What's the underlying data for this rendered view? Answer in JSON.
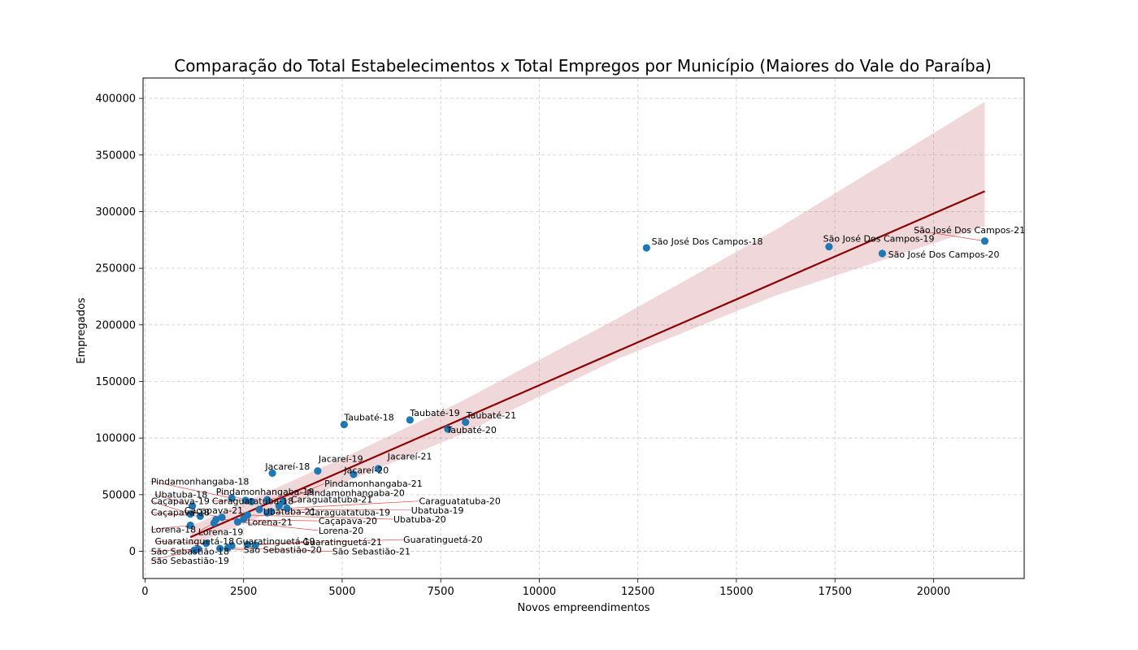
{
  "chart_data": {
    "type": "scatter",
    "title": "Comparação do Total Estabelecimentos x Total Empregos por Município (Maiores do Vale do Paraíba)",
    "xlabel": "Novos empreendimentos",
    "ylabel": "Empregados",
    "xlim": [
      -50,
      22300
    ],
    "ylim": [
      -24000,
      418000
    ],
    "xticks": [
      0,
      2500,
      5000,
      7500,
      10000,
      12500,
      15000,
      17500,
      20000
    ],
    "yticks": [
      0,
      50000,
      100000,
      150000,
      200000,
      250000,
      300000,
      350000,
      400000
    ],
    "grid": true,
    "point_color": "#1f77b4",
    "regression": {
      "color": "#8b0000",
      "band_color": "#c97b84",
      "line": [
        [
          1150,
          12500
        ],
        [
          21300,
          318000
        ]
      ],
      "band_upper": [
        [
          1150,
          22000
        ],
        [
          5000,
          82000
        ],
        [
          8000,
          132000
        ],
        [
          12000,
          206000
        ],
        [
          16000,
          284000
        ],
        [
          21300,
          397000
        ]
      ],
      "band_lower": [
        [
          1150,
          5000
        ],
        [
          5000,
          60000
        ],
        [
          8000,
          103000
        ],
        [
          12000,
          170000
        ],
        [
          16000,
          226000
        ],
        [
          21300,
          287000
        ]
      ]
    },
    "points": [
      {
        "label": "São José Dos Campos-18",
        "x": 12720,
        "y": 268000,
        "lx": 12850,
        "ly": 271000
      },
      {
        "label": "São José Dos Campos-19",
        "x": 17350,
        "y": 269000,
        "lx": 17200,
        "ly": 273500
      },
      {
        "label": "São José Dos Campos-20",
        "x": 18700,
        "y": 263000,
        "lx": 18850,
        "ly": 259500
      },
      {
        "label": "São José Dos Campos-21",
        "x": 21300,
        "y": 274000,
        "lx": 19500,
        "ly": 281000
      },
      {
        "label": "Taubaté-18",
        "x": 5050,
        "y": 112000,
        "lx": 5050,
        "ly": 115500
      },
      {
        "label": "Taubaté-19",
        "x": 6720,
        "y": 116000,
        "lx": 6720,
        "ly": 119500
      },
      {
        "label": "Taubaté-20",
        "x": 7680,
        "y": 108000,
        "lx": 7650,
        "ly": 104500
      },
      {
        "label": "Taubaté-21",
        "x": 8130,
        "y": 114000,
        "lx": 8150,
        "ly": 117500
      },
      {
        "label": "Jacareí-18",
        "x": 3230,
        "y": 69000,
        "lx": 3050,
        "ly": 72000
      },
      {
        "label": "Jacareí-19",
        "x": 4380,
        "y": 71000,
        "lx": 4400,
        "ly": 79000
      },
      {
        "label": "Jacareí-20",
        "x": 5290,
        "y": 68000,
        "lx": 5050,
        "ly": 69000
      },
      {
        "label": "Jacareí-21",
        "x": 5920,
        "y": 73000,
        "lx": 6150,
        "ly": 81000
      },
      {
        "label": "Pindamonhangaba-18",
        "x": 2200,
        "y": 47000,
        "lx": 150,
        "ly": 59000
      },
      {
        "label": "Pindamonhangaba-19",
        "x": 2700,
        "y": 44000,
        "lx": 1800,
        "ly": 50000
      },
      {
        "label": "Pindamonhangaba-20",
        "x": 3100,
        "y": 45500,
        "lx": 4100,
        "ly": 49000
      },
      {
        "label": "Pindamonhangaba-21",
        "x": 3500,
        "y": 44000,
        "lx": 4550,
        "ly": 57000
      },
      {
        "label": "Ubatuba-18",
        "x": 1200,
        "y": 40000,
        "lx": 250,
        "ly": 47500
      },
      {
        "label": "Ubatuba-19",
        "x": 2900,
        "y": 37000,
        "lx": 6750,
        "ly": 33500
      },
      {
        "label": "Ubatuba-20",
        "x": 2600,
        "y": 32000,
        "lx": 6300,
        "ly": 25500
      },
      {
        "label": "Ubatuba-21",
        "x": 3200,
        "y": 35000,
        "lx": 3000,
        "ly": 32500
      },
      {
        "label": "Caraguatatuba-18",
        "x": 2550,
        "y": 45000,
        "lx": 1700,
        "ly": 41500
      },
      {
        "label": "Caraguatatuba-19",
        "x": 3100,
        "y": 34000,
        "lx": 4150,
        "ly": 31500
      },
      {
        "label": "Caraguatatuba-20",
        "x": 3600,
        "y": 38000,
        "lx": 6950,
        "ly": 41500
      },
      {
        "label": "Caraguatatuba-21",
        "x": 3400,
        "y": 40000,
        "lx": 3700,
        "ly": 43000
      },
      {
        "label": "Caçapava-18",
        "x": 1400,
        "y": 31000,
        "lx": 150,
        "ly": 31500
      },
      {
        "label": "Caçapava-19",
        "x": 1150,
        "y": 33000,
        "lx": 150,
        "ly": 41500
      },
      {
        "label": "Caçapava-20",
        "x": 1800,
        "y": 28000,
        "lx": 4400,
        "ly": 24000
      },
      {
        "label": "Caçapava-21",
        "x": 1950,
        "y": 30000,
        "lx": 1000,
        "ly": 33500
      },
      {
        "label": "Lorena-18",
        "x": 1150,
        "y": 23000,
        "lx": 150,
        "ly": 16500
      },
      {
        "label": "Lorena-19",
        "x": 1750,
        "y": 25000,
        "lx": 1350,
        "ly": 14500
      },
      {
        "label": "Lorena-20",
        "x": 2350,
        "y": 26000,
        "lx": 4400,
        "ly": 15500
      },
      {
        "label": "Lorena-21",
        "x": 2500,
        "y": 28500,
        "lx": 2600,
        "ly": 23000
      },
      {
        "label": "Guaratinguetá-18",
        "x": 1550,
        "y": 7000,
        "lx": 250,
        "ly": 6000
      },
      {
        "label": "Guaratinguetá-19",
        "x": 2200,
        "y": 5000,
        "lx": 2300,
        "ly": 6000
      },
      {
        "label": "Guaratinguetá-20",
        "x": 2600,
        "y": 6000,
        "lx": 6550,
        "ly": 7500
      },
      {
        "label": "Guaratinguetá-21",
        "x": 2800,
        "y": 5500,
        "lx": 4000,
        "ly": 5500
      },
      {
        "label": "São Sebastião-18",
        "x": 1350,
        "y": 2000,
        "lx": 150,
        "ly": -3000
      },
      {
        "label": "São Sebastião-19",
        "x": 1250,
        "y": 1000,
        "lx": 150,
        "ly": -11000
      },
      {
        "label": "São Sebastião-20",
        "x": 1900,
        "y": 2500,
        "lx": 2500,
        "ly": -1500
      },
      {
        "label": "São Sebastião-21",
        "x": 2100,
        "y": 3000,
        "lx": 4750,
        "ly": -3000
      }
    ]
  }
}
